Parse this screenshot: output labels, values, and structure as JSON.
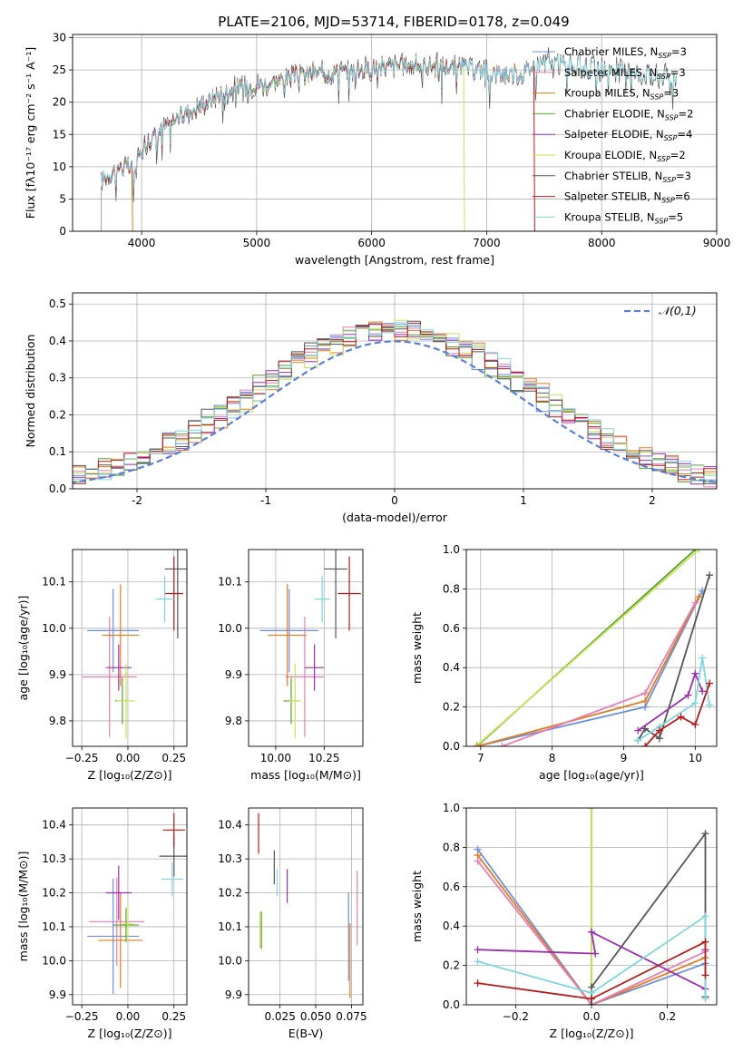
{
  "title": "PLATE=2106, MJD=53714, FIBERID=0178, z=0.049",
  "colors": {
    "Chabrier MILES": "#6d8fd8",
    "Salpeter MILES": "#e57fb4",
    "Kroupa MILES": "#e07b1f",
    "Chabrier ELODIE": "#5aa02c",
    "Salpeter ELODIE": "#9b2fae",
    "Kroupa ELODIE": "#c7e25a",
    "Chabrier STELIB": "#555555",
    "Salpeter STELIB": "#b31b1b",
    "Kroupa STELIB": "#7fd6dc"
  },
  "chart_data": [
    {
      "id": "spectrum",
      "type": "line",
      "xlabel": "wavelength [Angstrom, rest frame]",
      "ylabel": "Flux [fλ10⁻¹⁷ erg cm⁻² s⁻¹ A⁻¹]",
      "xlim": [
        3400,
        9000
      ],
      "ylim": [
        0,
        30.5
      ],
      "xticks": [
        4000,
        5000,
        6000,
        7000,
        8000,
        9000
      ],
      "yticks": [
        0,
        5,
        10,
        15,
        20,
        25,
        30
      ],
      "legend_position": "top-right",
      "legend": [
        {
          "model": "Chabrier MILES",
          "label": "Chabrier MILES, N",
          "sub": "SSP",
          "n": "=3"
        },
        {
          "model": "Salpeter MILES",
          "label": "Salpeter MILES, N",
          "sub": "SSP",
          "n": "=3"
        },
        {
          "model": "Kroupa MILES",
          "label": "Kroupa MILES, N",
          "sub": "SSP",
          "n": "=3"
        },
        {
          "model": "Chabrier ELODIE",
          "label": "Chabrier ELODIE, N",
          "sub": "SSP",
          "n": "=2"
        },
        {
          "model": "Salpeter ELODIE",
          "label": "Salpeter ELODIE, N",
          "sub": "SSP",
          "n": "=4"
        },
        {
          "model": "Kroupa ELODIE",
          "label": "Kroupa ELODIE, N",
          "sub": "SSP",
          "n": "=2"
        },
        {
          "model": "Chabrier STELIB",
          "label": "Chabrier STELIB, N",
          "sub": "SSP",
          "n": "=3"
        },
        {
          "model": "Salpeter STELIB",
          "label": "Salpeter STELIB, N",
          "sub": "SSP",
          "n": "=6"
        },
        {
          "model": "Kroupa STELIB",
          "label": "Kroupa STELIB, N",
          "sub": "SSP",
          "n": "=5"
        }
      ],
      "continuum": {
        "x": [
          3650,
          3800,
          3950,
          4000,
          4150,
          4300,
          4500,
          4700,
          4900,
          5100,
          5300,
          5500,
          5700,
          5900,
          6100,
          6300,
          6500,
          6700,
          6900,
          7100,
          7300,
          7500,
          7700,
          7900,
          8100,
          8300,
          8500,
          8650
        ],
        "y": [
          8,
          10,
          9.5,
          13,
          15.5,
          17.5,
          19.5,
          21.5,
          22.5,
          23,
          24,
          24.5,
          24.8,
          25,
          25.5,
          25.8,
          25.8,
          25.5,
          25.2,
          24.5,
          24.5,
          26.5,
          25.8,
          25.3,
          25,
          24.5,
          24.2,
          24
        ]
      },
      "drops": [
        {
          "model": "Kroupa ELODIE",
          "x": 6800
        },
        {
          "model": "Salpeter STELIB",
          "x": 7410
        },
        {
          "model": "Kroupa MILES",
          "x": 3915
        }
      ]
    },
    {
      "id": "residuals",
      "type": "histogram",
      "xlabel": "(data-model)/error",
      "ylabel": "Normed distribution",
      "xlim": [
        -2.5,
        2.5
      ],
      "ylim": [
        0,
        0.53
      ],
      "xticks": [
        -2,
        -1,
        0,
        1,
        2
      ],
      "yticks": [
        0.0,
        0.1,
        0.2,
        0.3,
        0.4,
        0.5
      ],
      "reference": {
        "label": "𝒩(0,1)",
        "color": "#5b7fd1"
      },
      "legend_position": "top-right"
    },
    {
      "id": "age-vs-Z",
      "type": "errorbar",
      "xlabel": "Z [log₁₀(Z/Z⊙)]",
      "ylabel": "age  [log₁₀(age/yr)]",
      "xlim": [
        -0.3,
        0.32
      ],
      "ylim": [
        9.745,
        10.17
      ],
      "xticks": [
        -0.25,
        0.0,
        0.25
      ],
      "xticklabels": [
        "−0.25",
        "0.00",
        "0.25"
      ],
      "yticks": [
        9.8,
        9.9,
        10.0,
        10.1
      ],
      "points": [
        {
          "model": "Chabrier MILES",
          "x": -0.08,
          "xerr": 0.14,
          "y": 9.995,
          "yerr": 0.09
        },
        {
          "model": "Salpeter MILES",
          "x": -0.1,
          "xerr": 0.15,
          "y": 9.895,
          "yerr": 0.13
        },
        {
          "model": "Kroupa MILES",
          "x": -0.04,
          "xerr": 0.1,
          "y": 9.985,
          "yerr": 0.11
        },
        {
          "model": "Chabrier ELODIE",
          "x": -0.03,
          "xerr": 0.04,
          "y": 9.843,
          "yerr": 0.05
        },
        {
          "model": "Salpeter ELODIE",
          "x": -0.05,
          "xerr": 0.07,
          "y": 9.915,
          "yerr": 0.05
        },
        {
          "model": "Kroupa ELODIE",
          "x": -0.01,
          "xerr": 0.05,
          "y": 9.843,
          "yerr": 0.08
        },
        {
          "model": "Chabrier STELIB",
          "x": 0.27,
          "xerr": 0.07,
          "y": 10.128,
          "yerr": 0.15
        },
        {
          "model": "Salpeter STELIB",
          "x": 0.25,
          "xerr": 0.05,
          "y": 10.075,
          "yerr": 0.08
        },
        {
          "model": "Kroupa STELIB",
          "x": 0.2,
          "xerr": 0.05,
          "y": 10.063,
          "yerr": 0.05
        }
      ]
    },
    {
      "id": "age-vs-mass",
      "type": "errorbar",
      "xlabel": "mass [log₁₀(M/M⊙)]",
      "ylabel": "",
      "xlim": [
        9.86,
        10.45
      ],
      "ylim": [
        9.745,
        10.17
      ],
      "xticks": [
        10.0,
        10.25
      ],
      "xticklabels": [
        "10.00",
        "10.25"
      ],
      "yticks": [
        9.8,
        9.9,
        10.0,
        10.1
      ],
      "points": [
        {
          "model": "Chabrier MILES",
          "x": 10.07,
          "xerr": 0.15,
          "y": 9.995,
          "yerr": 0.09
        },
        {
          "model": "Salpeter MILES",
          "x": 10.15,
          "xerr": 0.1,
          "y": 9.895,
          "yerr": 0.13
        },
        {
          "model": "Kroupa MILES",
          "x": 10.06,
          "xerr": 0.1,
          "y": 9.985,
          "yerr": 0.11
        },
        {
          "model": "Chabrier ELODIE",
          "x": 10.08,
          "xerr": 0.04,
          "y": 9.843,
          "yerr": 0.05
        },
        {
          "model": "Salpeter ELODIE",
          "x": 10.2,
          "xerr": 0.05,
          "y": 9.915,
          "yerr": 0.05
        },
        {
          "model": "Kroupa ELODIE",
          "x": 10.1,
          "xerr": 0.03,
          "y": 9.843,
          "yerr": 0.08
        },
        {
          "model": "Chabrier STELIB",
          "x": 10.31,
          "xerr": 0.06,
          "y": 10.128,
          "yerr": 0.15
        },
        {
          "model": "Salpeter STELIB",
          "x": 10.38,
          "xerr": 0.06,
          "y": 10.075,
          "yerr": 0.08
        },
        {
          "model": "Kroupa STELIB",
          "x": 10.24,
          "xerr": 0.04,
          "y": 10.063,
          "yerr": 0.05
        }
      ]
    },
    {
      "id": "massweight-vs-age",
      "type": "line",
      "xlabel": "age  [log₁₀(age/yr)]",
      "ylabel": "mass weight",
      "xlim": [
        6.8,
        10.3
      ],
      "ylim": [
        0,
        1.0
      ],
      "xticks": [
        7,
        8,
        9,
        10
      ],
      "yticks": [
        0.0,
        0.2,
        0.4,
        0.6,
        0.8,
        1.0
      ],
      "series": [
        {
          "model": "Chabrier ELODIE",
          "x": [
            6.95,
            10.0
          ],
          "y": [
            0.0,
            1.0
          ]
        },
        {
          "model": "Kroupa ELODIE",
          "x": [
            6.95,
            10.05
          ],
          "y": [
            0.005,
            1.0
          ]
        },
        {
          "model": "Chabrier MILES",
          "x": [
            6.95,
            9.3,
            10.1
          ],
          "y": [
            0.0,
            0.2,
            0.79
          ]
        },
        {
          "model": "Kroupa MILES",
          "x": [
            6.95,
            9.3,
            10.05
          ],
          "y": [
            0.0,
            0.23,
            0.76
          ]
        },
        {
          "model": "Salpeter MILES",
          "x": [
            7.3,
            9.3,
            10.0
          ],
          "y": [
            0.0,
            0.27,
            0.73
          ]
        },
        {
          "model": "Chabrier STELIB",
          "x": [
            9.2,
            9.3,
            9.5,
            10.2
          ],
          "y": [
            0.03,
            0.09,
            0.04,
            0.87
          ]
        },
        {
          "model": "Salpeter ELODIE",
          "x": [
            9.2,
            9.9,
            10.0,
            10.1
          ],
          "y": [
            0.08,
            0.26,
            0.37,
            0.28
          ]
        },
        {
          "model": "Kroupa STELIB",
          "x": [
            9.2,
            9.5,
            10.0,
            10.1,
            10.2
          ],
          "y": [
            0.03,
            0.1,
            0.22,
            0.45,
            0.21
          ]
        },
        {
          "model": "Salpeter STELIB",
          "x": [
            9.3,
            9.5,
            9.8,
            10.0,
            10.2
          ],
          "y": [
            0.0,
            0.08,
            0.15,
            0.11,
            0.32
          ]
        }
      ]
    },
    {
      "id": "mass-vs-Z",
      "type": "errorbar",
      "xlabel": "Z [log₁₀(Z/Z⊙)]",
      "ylabel": "mass [log₁₀(M/M⊙)]",
      "xlim": [
        -0.3,
        0.32
      ],
      "ylim": [
        9.87,
        10.45
      ],
      "xticks": [
        -0.25,
        0.0,
        0.25
      ],
      "xticklabels": [
        "−0.25",
        "0.00",
        "0.25"
      ],
      "yticks": [
        9.9,
        10.0,
        10.1,
        10.2,
        10.3,
        10.4
      ],
      "points": [
        {
          "model": "Chabrier MILES",
          "x": -0.08,
          "xerr": 0.14,
          "y": 10.072,
          "yerr": 0.17
        },
        {
          "model": "Salpeter MILES",
          "x": -0.06,
          "xerr": 0.15,
          "y": 10.115,
          "yerr": 0.13
        },
        {
          "model": "Kroupa MILES",
          "x": -0.04,
          "xerr": 0.12,
          "y": 10.06,
          "yerr": 0.14
        },
        {
          "model": "Chabrier ELODIE",
          "x": -0.01,
          "xerr": 0.07,
          "y": 10.105,
          "yerr": 0.05
        },
        {
          "model": "Salpeter ELODIE",
          "x": -0.05,
          "xerr": 0.07,
          "y": 10.2,
          "yerr": 0.08
        },
        {
          "model": "Kroupa ELODIE",
          "x": 0.0,
          "xerr": 0.03,
          "y": 10.108,
          "yerr": 0.05
        },
        {
          "model": "Chabrier STELIB",
          "x": 0.25,
          "xerr": 0.08,
          "y": 10.308,
          "yerr": 0.06
        },
        {
          "model": "Salpeter STELIB",
          "x": 0.25,
          "xerr": 0.06,
          "y": 10.385,
          "yerr": 0.05
        },
        {
          "model": "Kroupa STELIB",
          "x": 0.24,
          "xerr": 0.06,
          "y": 10.24,
          "yerr": 0.05
        }
      ]
    },
    {
      "id": "mass-vs-ebv",
      "type": "errorbar",
      "xlabel": "E(B-V)",
      "ylabel": "",
      "xlim": [
        0.003,
        0.083
      ],
      "ylim": [
        9.87,
        10.45
      ],
      "xticks": [
        0.025,
        0.05,
        0.075
      ],
      "xticklabels": [
        "0.025",
        "0.050",
        "0.075"
      ],
      "yticks": [
        9.9,
        10.0,
        10.1,
        10.2,
        10.3,
        10.4
      ],
      "points": [
        {
          "model": "Chabrier MILES",
          "x": 0.073,
          "xerr": 0.0,
          "y": 10.07,
          "yerr": 0.13
        },
        {
          "model": "Salpeter MILES",
          "x": 0.079,
          "xerr": 0.0,
          "y": 10.155,
          "yerr": 0.11
        },
        {
          "model": "Kroupa MILES",
          "x": 0.074,
          "xerr": 0.0,
          "y": 10.0,
          "yerr": 0.11
        },
        {
          "model": "Chabrier ELODIE",
          "x": 0.012,
          "xerr": 0.0,
          "y": 10.09,
          "yerr": 0.055
        },
        {
          "model": "Salpeter ELODIE",
          "x": 0.03,
          "xerr": 0.0,
          "y": 10.22,
          "yerr": 0.05
        },
        {
          "model": "Kroupa ELODIE",
          "x": 0.011,
          "xerr": 0.0,
          "y": 10.09,
          "yerr": 0.055
        },
        {
          "model": "Chabrier STELIB",
          "x": 0.021,
          "xerr": 0.0,
          "y": 10.275,
          "yerr": 0.05
        },
        {
          "model": "Salpeter STELIB",
          "x": 0.01,
          "xerr": 0.0,
          "y": 10.375,
          "yerr": 0.06
        },
        {
          "model": "Kroupa STELIB",
          "x": 0.023,
          "xerr": 0.0,
          "y": 10.23,
          "yerr": 0.04
        }
      ]
    },
    {
      "id": "massweight-vs-Z",
      "type": "line",
      "xlabel": "Z [log₁₀(Z/Z⊙)]",
      "ylabel": "mass weight",
      "xlim": [
        -0.33,
        0.33
      ],
      "ylim": [
        0,
        1.0
      ],
      "xticks": [
        -0.2,
        0.0,
        0.2
      ],
      "xticklabels": [
        "−0.2",
        "0.0",
        "0.2"
      ],
      "yticks": [
        0.0,
        0.2,
        0.4,
        0.6,
        0.8,
        1.0
      ],
      "series": [
        {
          "model": "Chabrier MILES",
          "x": [
            -0.3,
            0.0,
            0.3
          ],
          "y": [
            0.79,
            0.0,
            0.21
          ]
        },
        {
          "model": "Kroupa MILES",
          "x": [
            -0.3,
            0.0,
            0.3
          ],
          "y": [
            0.76,
            0.0,
            0.24
          ]
        },
        {
          "model": "Salpeter MILES",
          "x": [
            -0.3,
            0.0,
            0.3
          ],
          "y": [
            0.73,
            0.0,
            0.27
          ]
        },
        {
          "model": "Chabrier ELODIE",
          "x": [
            0.0,
            0.0
          ],
          "y": [
            0.0,
            1.0
          ]
        },
        {
          "model": "Kroupa ELODIE",
          "x": [
            0.0,
            0.0
          ],
          "y": [
            0.0,
            1.0
          ]
        },
        {
          "model": "Chabrier STELIB",
          "x": [
            0.0,
            0.0,
            0.3,
            0.3
          ],
          "y": [
            0.0,
            0.09,
            0.87,
            0.04
          ]
        },
        {
          "model": "Salpeter ELODIE",
          "x": [
            -0.3,
            0.01,
            0.0,
            0.3,
            0.3
          ],
          "y": [
            0.28,
            0.26,
            0.37,
            0.08,
            0.28
          ]
        },
        {
          "model": "Kroupa STELIB",
          "x": [
            -0.3,
            0.0,
            0.3,
            0.3
          ],
          "y": [
            0.22,
            0.06,
            0.45,
            0.03
          ]
        },
        {
          "model": "Salpeter STELIB",
          "x": [
            -0.3,
            0.0,
            0.3,
            0.3
          ],
          "y": [
            0.11,
            0.03,
            0.32,
            0.15
          ]
        }
      ]
    }
  ]
}
